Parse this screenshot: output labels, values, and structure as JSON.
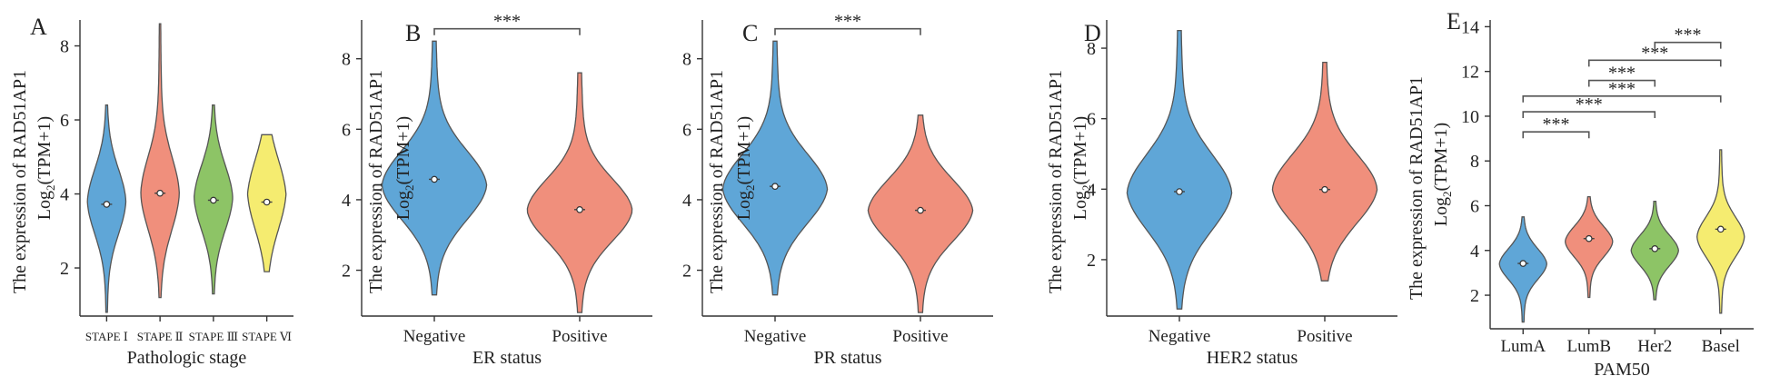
{
  "chart_data": [
    {
      "type": "violin",
      "panel_label": "A",
      "ylabel_line1": "The expression of RAD51AP1",
      "ylabel_line2_main": "Log",
      "ylabel_line2_sub": "2",
      "ylabel_line2_rest": "(TPM+1)",
      "xlabel": "Pathologic stage",
      "ylim": [
        0.7,
        8.7
      ],
      "yticks": [
        2,
        4,
        6,
        8
      ],
      "categories": [
        "STAPE Ⅰ",
        "STAPE Ⅱ",
        "STAPE Ⅲ",
        "STAPE Ⅵ"
      ],
      "colors": [
        "#5fa6d7",
        "#f08f7c",
        "#8dc466",
        "#f5ec70"
      ],
      "distributions": [
        {
          "min": 0.8,
          "max": 6.4,
          "center": 3.72,
          "mode": 3.8,
          "spread": 0.9
        },
        {
          "min": 1.2,
          "max": 8.6,
          "center": 4.02,
          "mode": 4.0,
          "spread": 1.0
        },
        {
          "min": 1.3,
          "max": 6.4,
          "center": 3.83,
          "mode": 3.9,
          "spread": 0.9
        },
        {
          "min": 1.9,
          "max": 5.6,
          "center": 3.78,
          "mode": 4.0,
          "spread": 1.0
        }
      ],
      "significance": []
    },
    {
      "type": "violin",
      "panel_label": "B",
      "ylabel_line1": "The expression of RAD51AP1",
      "ylabel_line2_main": "Log",
      "ylabel_line2_sub": "2",
      "ylabel_line2_rest": "(TPM+1)",
      "xlabel": "ER status",
      "ylim": [
        0.7,
        9.1
      ],
      "yticks": [
        2,
        4,
        6,
        8
      ],
      "categories": [
        "Negative",
        "Positive"
      ],
      "colors": [
        "#5fa6d7",
        "#f08f7c"
      ],
      "distributions": [
        {
          "min": 1.3,
          "max": 8.5,
          "center": 4.58,
          "mode": 4.4,
          "spread": 1.0
        },
        {
          "min": 0.8,
          "max": 7.6,
          "center": 3.72,
          "mode": 3.7,
          "spread": 0.9
        }
      ],
      "significance": [
        {
          "from": 0,
          "to": 1,
          "y": 8.85,
          "label": "***"
        }
      ]
    },
    {
      "type": "violin",
      "panel_label": "C",
      "ylabel_line1": "The expression of RAD51AP1",
      "ylabel_line2_main": "Log",
      "ylabel_line2_sub": "2",
      "ylabel_line2_rest": "(TPM+1)",
      "xlabel": "PR status",
      "ylim": [
        0.7,
        9.1
      ],
      "yticks": [
        2,
        4,
        6,
        8
      ],
      "categories": [
        "Negative",
        "Positive"
      ],
      "colors": [
        "#5fa6d7",
        "#f08f7c"
      ],
      "distributions": [
        {
          "min": 1.3,
          "max": 8.5,
          "center": 4.38,
          "mode": 4.3,
          "spread": 1.0
        },
        {
          "min": 0.8,
          "max": 6.4,
          "center": 3.7,
          "mode": 3.7,
          "spread": 0.9
        }
      ],
      "significance": [
        {
          "from": 0,
          "to": 1,
          "y": 8.85,
          "label": "***"
        }
      ]
    },
    {
      "type": "violin",
      "panel_label": "D",
      "ylabel_line1": "The expression of RAD51AP1",
      "ylabel_line2_main": "Log",
      "ylabel_line2_sub": "2",
      "ylabel_line2_rest": "(TPM+1)",
      "xlabel": "HER2 status",
      "ylim": [
        0.4,
        8.8
      ],
      "yticks": [
        2,
        4,
        6,
        8
      ],
      "categories": [
        "Negative",
        "Positive"
      ],
      "colors": [
        "#5fa6d7",
        "#f08f7c"
      ],
      "distributions": [
        {
          "min": 0.6,
          "max": 8.5,
          "center": 3.93,
          "mode": 3.9,
          "spread": 1.1
        },
        {
          "min": 1.4,
          "max": 7.6,
          "center": 3.99,
          "mode": 4.0,
          "spread": 1.0
        }
      ],
      "significance": []
    },
    {
      "type": "violin",
      "panel_label": "E",
      "ylabel_line1": "The expression of RAD51AP1",
      "ylabel_line2_main": "Log",
      "ylabel_line2_sub": "2",
      "ylabel_line2_rest": "(TPM+1)",
      "xlabel": "PAM50",
      "ylim": [
        0.5,
        14.3
      ],
      "yticks": [
        2,
        4,
        6,
        8,
        10,
        12,
        14
      ],
      "categories": [
        "LumA",
        "LumB",
        "Her2",
        "Basel"
      ],
      "colors": [
        "#5fa6d7",
        "#f08f7c",
        "#8dc466",
        "#f5ec70"
      ],
      "distributions": [
        {
          "min": 0.8,
          "max": 5.5,
          "center": 3.42,
          "mode": 3.4,
          "spread": 0.7
        },
        {
          "min": 1.9,
          "max": 6.4,
          "center": 4.53,
          "mode": 4.4,
          "spread": 0.7
        },
        {
          "min": 1.8,
          "max": 6.2,
          "center": 4.08,
          "mode": 4.0,
          "spread": 0.7
        },
        {
          "min": 1.2,
          "max": 8.5,
          "center": 4.95,
          "mode": 4.6,
          "spread": 0.9
        }
      ],
      "significance": [
        {
          "from": 0,
          "to": 1,
          "y": 9.3,
          "label": "***"
        },
        {
          "from": 0,
          "to": 2,
          "y": 10.2,
          "label": "***"
        },
        {
          "from": 0,
          "to": 3,
          "y": 10.9,
          "label": "***"
        },
        {
          "from": 1,
          "to": 2,
          "y": 11.6,
          "label": "***"
        },
        {
          "from": 1,
          "to": 3,
          "y": 12.5,
          "label": "***"
        },
        {
          "from": 2,
          "to": 3,
          "y": 13.3,
          "label": "***"
        }
      ]
    }
  ]
}
